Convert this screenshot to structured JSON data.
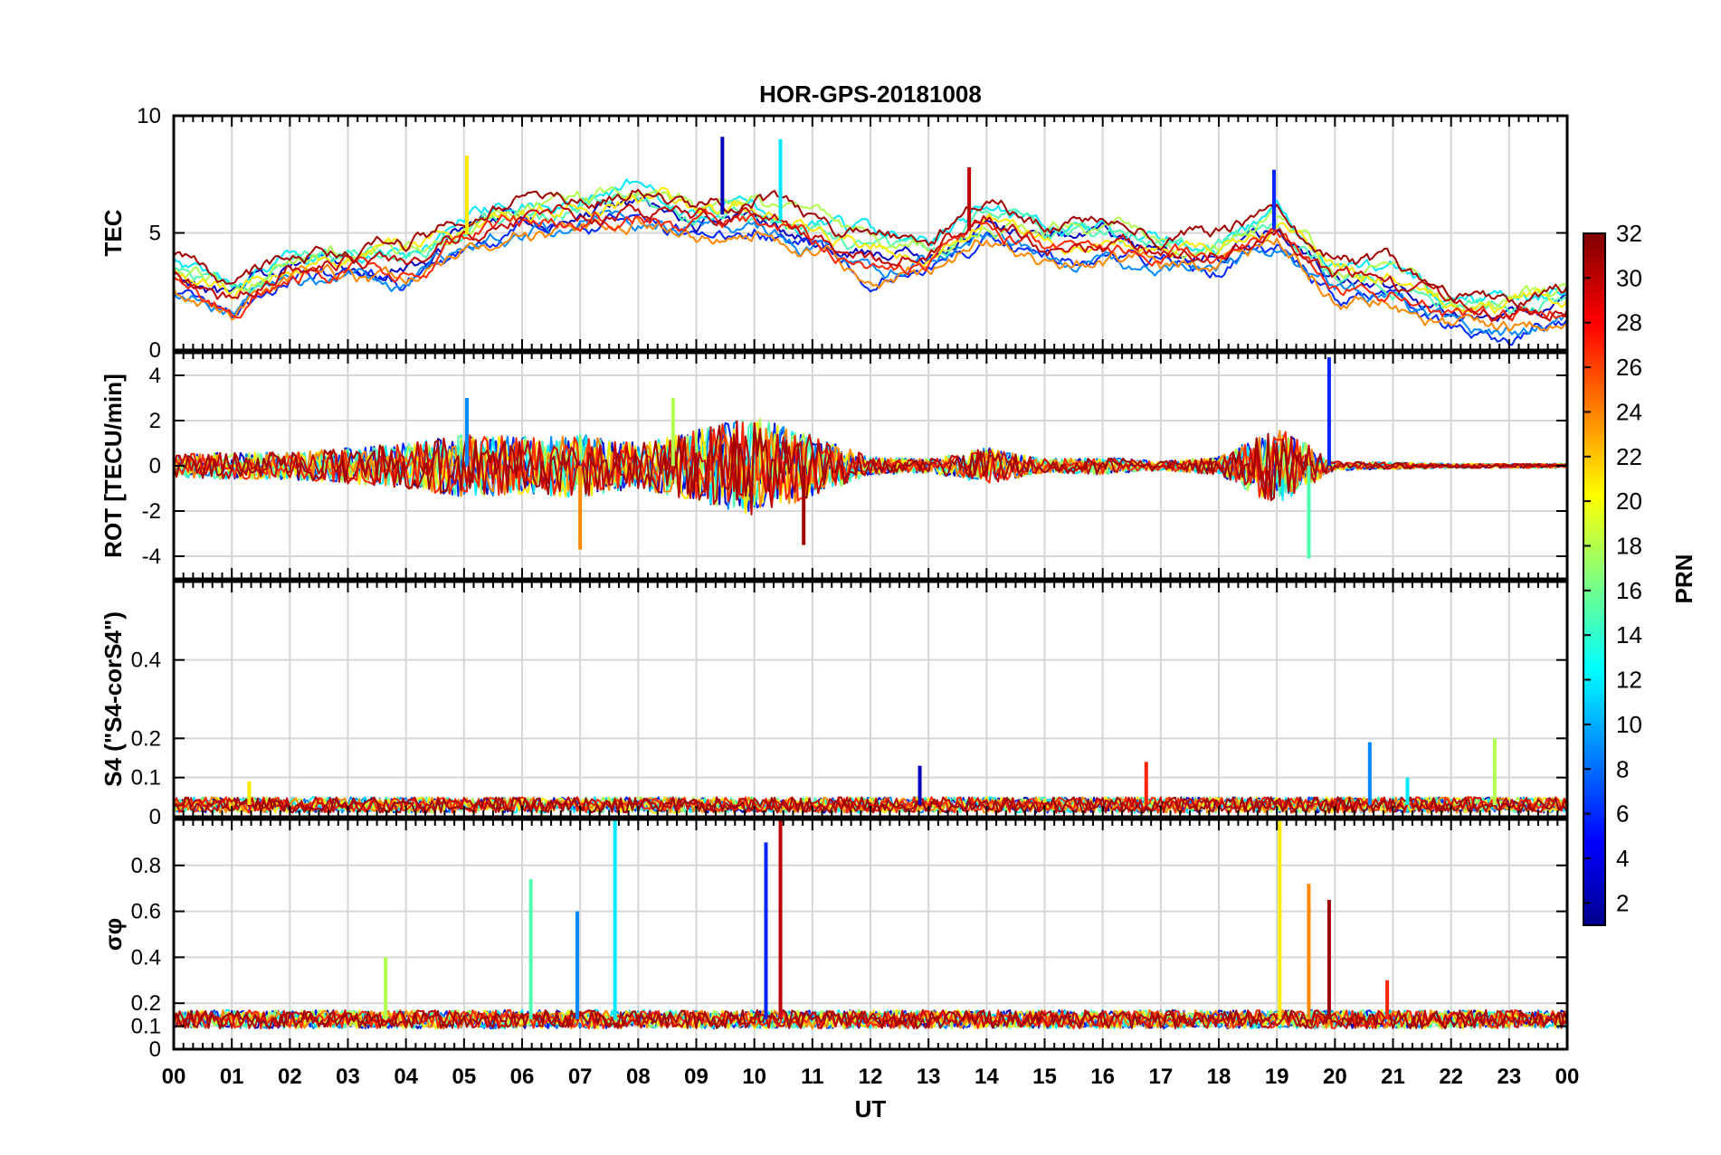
{
  "chart_data": {
    "type": "line",
    "title": "HOR-GPS-20181008",
    "xlabel": "UT",
    "x_ticks": [
      "00",
      "01",
      "02",
      "03",
      "04",
      "05",
      "06",
      "07",
      "08",
      "09",
      "10",
      "11",
      "12",
      "13",
      "14",
      "15",
      "16",
      "17",
      "18",
      "19",
      "20",
      "21",
      "22",
      "23",
      "00"
    ],
    "xlim": [
      0,
      24
    ],
    "grid": true,
    "panels": [
      {
        "id": "tec",
        "ylabel": "TEC",
        "ylim": [
          0,
          10
        ],
        "yticks": [
          0,
          5,
          10
        ],
        "summary_curve": {
          "x": [
            0,
            1,
            2,
            3,
            4,
            5,
            6,
            7,
            8,
            9,
            10,
            11,
            12,
            13,
            14,
            15,
            16,
            17,
            18,
            19,
            20,
            21,
            22,
            23,
            24
          ],
          "y": [
            3.2,
            2.2,
            3.6,
            3.8,
            3.6,
            4.9,
            5.6,
            5.9,
            6.3,
            5.6,
            6.0,
            5.0,
            4.1,
            4.1,
            5.5,
            4.6,
            4.6,
            4.3,
            4.2,
            5.2,
            3.2,
            2.8,
            1.7,
            1.5,
            2.0
          ]
        },
        "peaks": [
          {
            "x": 9.45,
            "y": 9.1
          },
          {
            "x": 10.45,
            "y": 9.0
          },
          {
            "x": 5.05,
            "y": 8.3
          },
          {
            "x": 13.7,
            "y": 7.8
          },
          {
            "x": 18.95,
            "y": 7.7
          }
        ]
      },
      {
        "id": "rot",
        "ylabel": "ROT [TECU/min]",
        "ylim": [
          -5,
          5
        ],
        "yticks": [
          -4,
          -2,
          0,
          2,
          4
        ],
        "activity": {
          "x": [
            0,
            1,
            2,
            3,
            4,
            5,
            6,
            7,
            8,
            9,
            10,
            11,
            12,
            13,
            14,
            15,
            16,
            17,
            18,
            19,
            20,
            21,
            22,
            23,
            24
          ],
          "amplitude": [
            0.5,
            0.6,
            0.6,
            0.8,
            1.0,
            1.4,
            1.3,
            1.4,
            1.0,
            1.6,
            2.2,
            1.4,
            0.4,
            0.3,
            0.8,
            0.3,
            0.4,
            0.2,
            0.4,
            1.8,
            0.2,
            0.15,
            0.1,
            0.1,
            0.1
          ]
        },
        "peaks": [
          {
            "x": 19.9,
            "y": 4.8
          },
          {
            "x": 19.55,
            "y": -4.1
          },
          {
            "x": 7.0,
            "y": -3.7
          },
          {
            "x": 10.85,
            "y": -3.5
          },
          {
            "x": 5.05,
            "y": 3.0
          },
          {
            "x": 8.6,
            "y": 3.0
          }
        ]
      },
      {
        "id": "s4",
        "ylabel": "S4 (\"S4-corS4\")",
        "ylim": [
          0,
          0.6
        ],
        "yticks": [
          0,
          0.1,
          0.2,
          0.4
        ],
        "baseline": 0.03,
        "peaks": [
          {
            "x": 20.6,
            "y": 0.19
          },
          {
            "x": 22.75,
            "y": 0.2
          },
          {
            "x": 16.75,
            "y": 0.14
          },
          {
            "x": 12.85,
            "y": 0.13
          },
          {
            "x": 21.25,
            "y": 0.1
          },
          {
            "x": 1.3,
            "y": 0.09
          }
        ]
      },
      {
        "id": "sigma_phi",
        "ylabel": "σφ",
        "ylim": [
          0,
          1
        ],
        "yticks": [
          0,
          0.1,
          0.2,
          0.4,
          0.6,
          0.8
        ],
        "baseline": 0.13,
        "peaks": [
          {
            "x": 7.6,
            "y": 1.0
          },
          {
            "x": 19.05,
            "y": 1.0
          },
          {
            "x": 10.45,
            "y": 1.0
          },
          {
            "x": 10.2,
            "y": 0.9
          },
          {
            "x": 6.15,
            "y": 0.74
          },
          {
            "x": 19.55,
            "y": 0.72
          },
          {
            "x": 19.9,
            "y": 0.65
          },
          {
            "x": 6.95,
            "y": 0.6
          },
          {
            "x": 3.65,
            "y": 0.4
          },
          {
            "x": 20.9,
            "y": 0.3
          }
        ]
      }
    ],
    "colorbar": {
      "label": "PRN",
      "range": [
        1,
        32
      ],
      "ticks": [
        2,
        4,
        6,
        8,
        10,
        12,
        14,
        16,
        18,
        20,
        22,
        24,
        26,
        28,
        30,
        32
      ],
      "colormap": "jet"
    }
  }
}
